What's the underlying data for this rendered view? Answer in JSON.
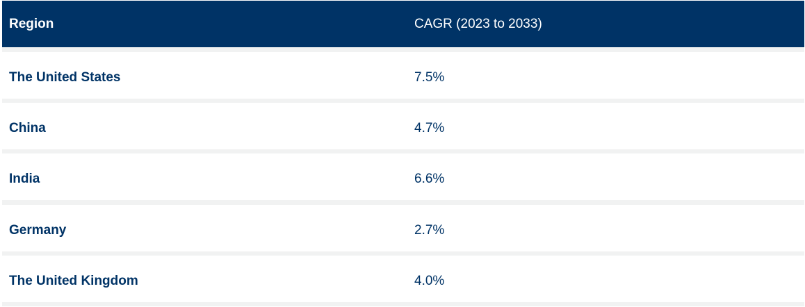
{
  "table": {
    "headers": [
      "Region",
      "CAGR (2023 to 2033)"
    ],
    "rows": [
      {
        "region": "The United States",
        "cagr": "7.5%"
      },
      {
        "region": "China",
        "cagr": "4.7%"
      },
      {
        "region": "India",
        "cagr": "6.6%"
      },
      {
        "region": "Germany",
        "cagr": "2.7%"
      },
      {
        "region": "The United Kingdom",
        "cagr": "4.0%"
      }
    ]
  },
  "colors": {
    "header_bg": "#003366",
    "header_text": "#ffffff",
    "row_text": "#003366",
    "row_bg": "#ffffff",
    "separator": "#f1f2f2"
  }
}
